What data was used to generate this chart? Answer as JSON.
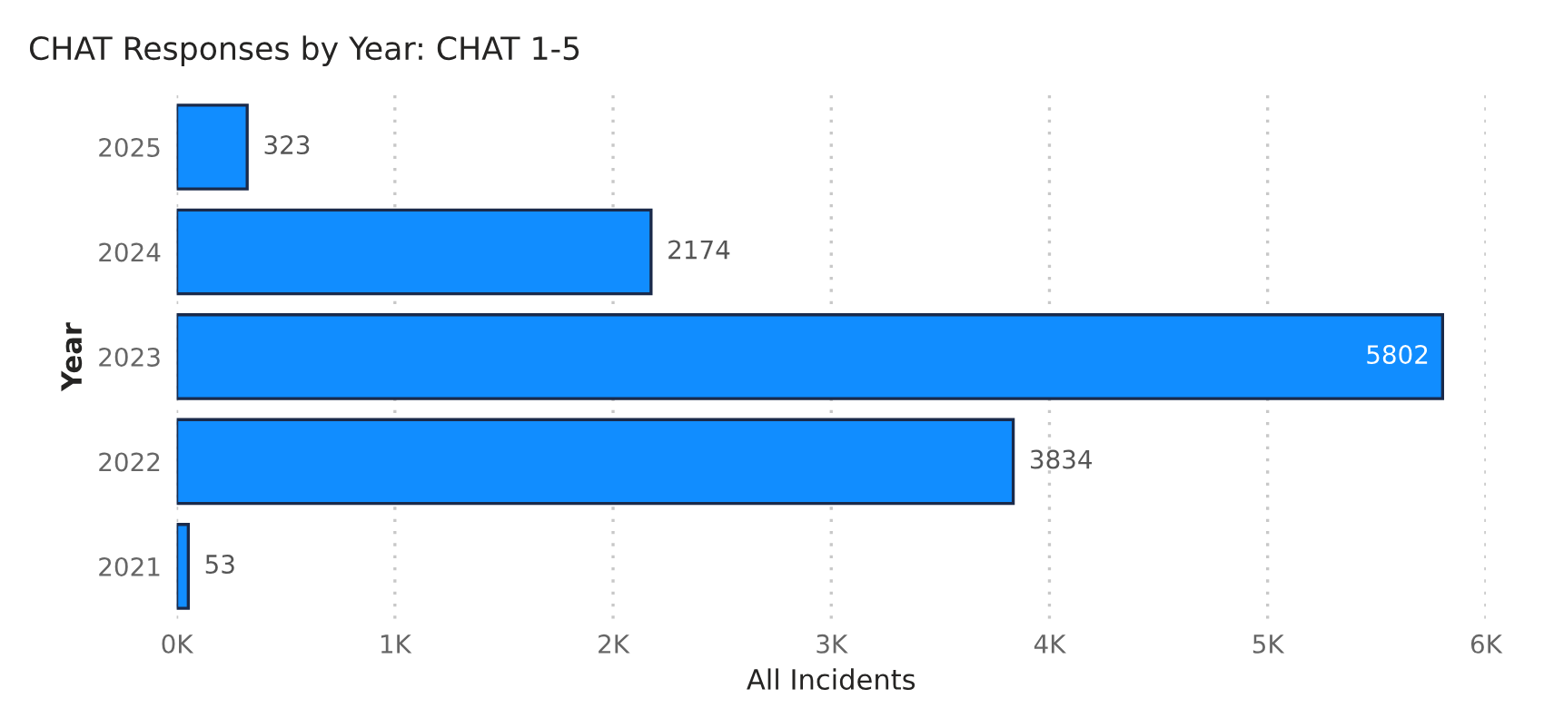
{
  "chart_data": {
    "type": "bar",
    "orientation": "horizontal",
    "title": "CHAT Responses by Year: CHAT 1-5",
    "xlabel": "All Incidents",
    "ylabel": "Year",
    "categories": [
      "2025",
      "2024",
      "2023",
      "2022",
      "2021"
    ],
    "values": [
      323,
      2174,
      5802,
      3834,
      53
    ],
    "color": "#118dff",
    "xlim": [
      0,
      6000
    ],
    "xticks": [
      {
        "value": 0,
        "label": "0K"
      },
      {
        "value": 1000,
        "label": "1K"
      },
      {
        "value": 2000,
        "label": "2K"
      },
      {
        "value": 3000,
        "label": "3K"
      },
      {
        "value": 4000,
        "label": "4K"
      },
      {
        "value": 5000,
        "label": "5K"
      },
      {
        "value": 6000,
        "label": "6K"
      }
    ],
    "grid": "x",
    "data_labels": true,
    "legend": false
  }
}
